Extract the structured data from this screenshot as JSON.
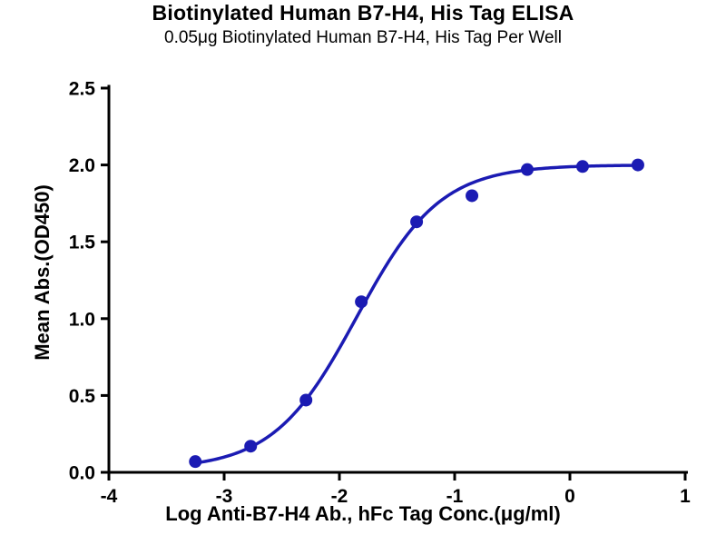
{
  "chart_data": {
    "type": "scatter",
    "title": "Biotinylated Human B7-H4, His Tag ELISA",
    "subtitle": "0.05μg Biotinylated Human B7-H4, His Tag Per Well",
    "xlabel": "Log Anti-B7-H4 Ab., hFc Tag Conc.(μg/ml)",
    "ylabel": "Mean Abs.(OD450)",
    "xlim": [
      -4,
      1
    ],
    "ylim": [
      0,
      2.5
    ],
    "xticks": [
      -4,
      -3,
      -2,
      -1,
      0,
      1
    ],
    "xtick_labels": [
      "-4",
      "-3",
      "-2",
      "-1",
      "0",
      "1"
    ],
    "yticks": [
      0,
      0.5,
      1.0,
      1.5,
      2.0,
      2.5
    ],
    "ytick_labels": [
      "0.0",
      "0.5",
      "1.0",
      "1.5",
      "2.0",
      "2.5"
    ],
    "grid": false,
    "legend": "none",
    "series_color": "#1b1bb3",
    "axis_color": "#000000",
    "points": [
      {
        "x": -3.25,
        "y": 0.07
      },
      {
        "x": -2.77,
        "y": 0.17
      },
      {
        "x": -2.29,
        "y": 0.47
      },
      {
        "x": -1.81,
        "y": 1.11
      },
      {
        "x": -1.33,
        "y": 1.63
      },
      {
        "x": -0.85,
        "y": 1.8
      },
      {
        "x": -0.37,
        "y": 1.97
      },
      {
        "x": 0.11,
        "y": 1.99
      },
      {
        "x": 0.59,
        "y": 2.0
      }
    ],
    "fit_curve": {
      "model": "4PL",
      "bottom": 0.02,
      "top": 2.0,
      "logEC50": -1.85,
      "hillslope": 1.2,
      "x_start": -3.25,
      "x_end": 0.59
    }
  }
}
